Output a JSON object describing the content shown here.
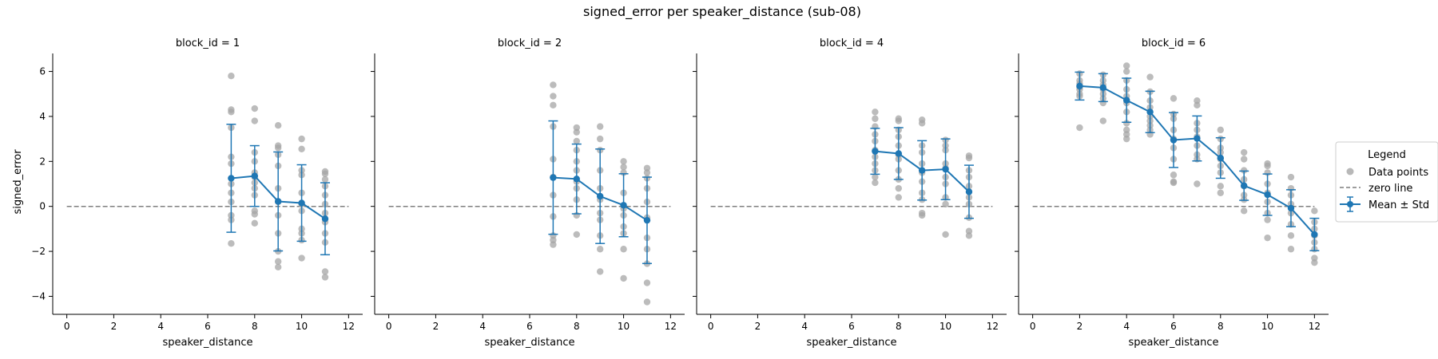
{
  "chart_data": {
    "type": "scatter",
    "title": "signed_error per speaker_distance (sub-08)",
    "xlabel": "speaker_distance",
    "ylabel": "signed_error",
    "xlim": [
      -0.6,
      12.6
    ],
    "ylim": [
      -4.8,
      6.8
    ],
    "xticks": [
      0,
      2,
      4,
      6,
      8,
      10,
      12
    ],
    "yticks": [
      -4,
      -2,
      0,
      2,
      4,
      6
    ],
    "grid": false,
    "legend": {
      "title": "Legend",
      "placement": "right",
      "entries": [
        "Data points",
        "zero line",
        "Mean ± Std"
      ]
    },
    "colors": {
      "points": "#a6a6a6",
      "mean": "#1f77b4",
      "zero": "#7f7f7f"
    },
    "panels": [
      {
        "title": "block_id = 1",
        "mean_std": [
          {
            "x": 7,
            "mean": 1.25,
            "std": 2.4
          },
          {
            "x": 8,
            "mean": 1.35,
            "std": 1.35
          },
          {
            "x": 9,
            "mean": 0.22,
            "std": 2.2
          },
          {
            "x": 10,
            "mean": 0.15,
            "std": 1.7
          },
          {
            "x": 11,
            "mean": -0.55,
            "std": 1.6
          }
        ],
        "points": [
          {
            "x": 7,
            "y": [
              5.8,
              4.3,
              4.2,
              3.5,
              2.2,
              1.9,
              1.0,
              0.6,
              0.2,
              -0.4,
              -0.6,
              -1.65
            ]
          },
          {
            "x": 8,
            "y": [
              4.35,
              3.8,
              2.4,
              2.0,
              1.5,
              1.3,
              1.05,
              0.8,
              0.5,
              -0.2,
              -0.35,
              -0.75
            ]
          },
          {
            "x": 9,
            "y": [
              3.6,
              2.7,
              2.6,
              2.3,
              1.8,
              0.8,
              0.2,
              -0.4,
              -1.2,
              -2.0,
              -2.45,
              -2.7
            ]
          },
          {
            "x": 10,
            "y": [
              3.0,
              2.55,
              1.6,
              1.4,
              0.6,
              0.1,
              -0.2,
              -1.0,
              -1.2,
              -1.5,
              -2.3
            ]
          },
          {
            "x": 11,
            "y": [
              1.55,
              1.45,
              1.2,
              0.9,
              0.5,
              0.1,
              -0.3,
              -0.7,
              -1.2,
              -1.6,
              -2.9,
              -3.15
            ]
          }
        ]
      },
      {
        "title": "block_id = 2",
        "mean_std": [
          {
            "x": 7,
            "mean": 1.28,
            "std": 2.52
          },
          {
            "x": 8,
            "mean": 1.22,
            "std": 1.55
          },
          {
            "x": 9,
            "mean": 0.45,
            "std": 2.1
          },
          {
            "x": 10,
            "mean": 0.05,
            "std": 1.4
          },
          {
            "x": 11,
            "mean": -0.62,
            "std": 1.92
          }
        ],
        "points": [
          {
            "x": 7,
            "y": [
              5.4,
              4.9,
              4.5,
              3.55,
              2.1,
              1.3,
              0.5,
              -0.45,
              -1.3,
              -1.5,
              -1.7
            ]
          },
          {
            "x": 8,
            "y": [
              3.5,
              3.3,
              2.9,
              2.5,
              2.0,
              1.6,
              1.1,
              0.8,
              0.3,
              -0.4,
              -1.25
            ]
          },
          {
            "x": 9,
            "y": [
              3.55,
              3.0,
              2.5,
              1.6,
              0.8,
              0.3,
              -0.3,
              -0.6,
              -1.3,
              -1.9,
              -2.9
            ]
          },
          {
            "x": 10,
            "y": [
              2.0,
              1.75,
              1.5,
              0.6,
              -0.1,
              -0.4,
              -0.9,
              -1.2,
              -1.9,
              -3.2
            ]
          },
          {
            "x": 11,
            "y": [
              1.7,
              1.5,
              1.25,
              0.8,
              0.2,
              -0.5,
              -1.4,
              -1.9,
              -2.55,
              -3.4,
              -4.25
            ]
          }
        ]
      },
      {
        "title": "block_id = 4",
        "mean_std": [
          {
            "x": 7,
            "mean": 2.45,
            "std": 1.02
          },
          {
            "x": 8,
            "mean": 2.35,
            "std": 1.15
          },
          {
            "x": 9,
            "mean": 1.6,
            "std": 1.32
          },
          {
            "x": 10,
            "mean": 1.65,
            "std": 1.35
          },
          {
            "x": 11,
            "mean": 0.65,
            "std": 1.18
          }
        ],
        "points": [
          {
            "x": 7,
            "y": [
              4.2,
              3.9,
              3.55,
              3.2,
              2.9,
              2.5,
              2.2,
              1.9,
              1.6,
              1.3,
              1.05
            ]
          },
          {
            "x": 8,
            "y": [
              3.9,
              3.8,
              3.4,
              3.1,
              2.7,
              2.3,
              2.1,
              1.6,
              1.2,
              0.8,
              0.4
            ]
          },
          {
            "x": 9,
            "y": [
              3.85,
              3.7,
              2.7,
              2.4,
              1.9,
              1.5,
              1.1,
              0.6,
              0.3,
              -0.3,
              -0.4
            ]
          },
          {
            "x": 10,
            "y": [
              2.95,
              2.7,
              2.5,
              1.9,
              1.7,
              1.3,
              1.0,
              0.4,
              0.1,
              -1.25
            ]
          },
          {
            "x": 11,
            "y": [
              2.25,
              2.15,
              1.6,
              1.3,
              0.9,
              0.4,
              0.1,
              -0.5,
              -1.1,
              -1.3
            ]
          }
        ]
      },
      {
        "title": "block_id = 6",
        "mean_std": [
          {
            "x": 2,
            "mean": 5.35,
            "std": 0.62
          },
          {
            "x": 3,
            "mean": 5.28,
            "std": 0.62
          },
          {
            "x": 4,
            "mean": 4.72,
            "std": 0.98
          },
          {
            "x": 5,
            "mean": 4.2,
            "std": 0.92
          },
          {
            "x": 6,
            "mean": 2.95,
            "std": 1.22
          },
          {
            "x": 7,
            "mean": 3.02,
            "std": 1.0
          },
          {
            "x": 8,
            "mean": 2.15,
            "std": 0.9
          },
          {
            "x": 9,
            "mean": 0.92,
            "std": 0.65
          },
          {
            "x": 10,
            "mean": 0.52,
            "std": 0.92
          },
          {
            "x": 11,
            "mean": -0.08,
            "std": 0.82
          },
          {
            "x": 12,
            "mean": -1.25,
            "std": 0.72
          }
        ],
        "points": [
          {
            "x": 2,
            "y": [
              5.9,
              5.6,
              5.45,
              5.3,
              5.2,
              5.0,
              4.9,
              3.5
            ]
          },
          {
            "x": 3,
            "y": [
              5.85,
              5.6,
              5.4,
              5.2,
              5.0,
              4.8,
              4.6,
              3.8
            ]
          },
          {
            "x": 4,
            "y": [
              6.25,
              6.0,
              5.6,
              5.2,
              4.9,
              4.6,
              4.2,
              3.7,
              3.4,
              3.2,
              3.0
            ]
          },
          {
            "x": 5,
            "y": [
              5.75,
              5.1,
              4.7,
              4.4,
              4.0,
              3.8,
              3.6,
              3.4,
              3.2
            ]
          },
          {
            "x": 6,
            "y": [
              4.8,
              4.1,
              3.9,
              3.4,
              3.0,
              2.6,
              2.1,
              1.4,
              1.1,
              1.05
            ]
          },
          {
            "x": 7,
            "y": [
              4.7,
              4.5,
              3.7,
              3.4,
              3.1,
              2.7,
              2.3,
              2.1,
              1.0
            ]
          },
          {
            "x": 8,
            "y": [
              3.4,
              3.0,
              2.6,
              2.4,
              2.1,
              1.8,
              1.5,
              0.9,
              0.6
            ]
          },
          {
            "x": 9,
            "y": [
              2.4,
              2.1,
              1.6,
              1.2,
              0.9,
              0.5,
              0.3,
              -0.2
            ]
          },
          {
            "x": 10,
            "y": [
              1.9,
              1.8,
              1.5,
              1.0,
              0.6,
              0.2,
              -0.3,
              -0.6,
              -1.4
            ]
          },
          {
            "x": 11,
            "y": [
              1.3,
              0.8,
              0.5,
              0.1,
              -0.3,
              -0.8,
              -1.3,
              -1.9
            ]
          },
          {
            "x": 12,
            "y": [
              -0.2,
              -0.7,
              -1.0,
              -1.3,
              -1.6,
              -1.9,
              -2.3,
              -2.5
            ]
          }
        ]
      }
    ]
  }
}
